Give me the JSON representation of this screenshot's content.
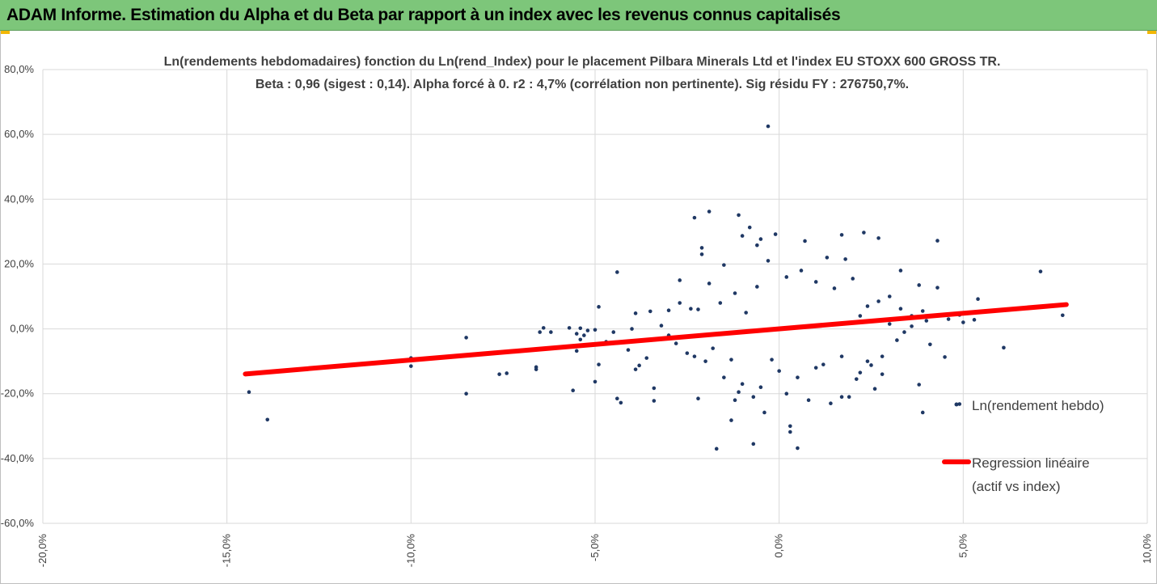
{
  "report": {
    "banner_title": "ADAM Informe. Estimation du Alpha et du Beta par rapport à un index avec les revenus connus capitalisés"
  },
  "colors": {
    "banner_bg": "#7dc67a",
    "point": "#1f3864",
    "regression": "#ff0000",
    "grid": "#d9d9d9",
    "text": "#404040"
  },
  "chart_data": {
    "type": "scatter",
    "title_line1": "Ln(rendements hebdomadaires) fonction du Ln(rend_Index) pour le placement Pilbara Minerals Ltd et l'index EU STOXX 600 GROSS TR.",
    "title_line2": "Beta : 0,96 (sigest : 0,14). Alpha forcé à 0. r2 : 4,7% (corrélation non pertinente). Sig résidu FY : 276750,7%.",
    "xlabel": "",
    "ylabel": "",
    "xlim": [
      -0.2,
      0.1
    ],
    "ylim": [
      -0.6,
      0.8
    ],
    "x_ticks": [
      -0.2,
      -0.15,
      -0.1,
      -0.05,
      0.0,
      0.05,
      0.1
    ],
    "x_tick_labels": [
      "-20,0%",
      "-15,0%",
      "-10,0%",
      "-5,0%",
      "0,0%",
      "5,0%",
      "10,0%"
    ],
    "y_ticks": [
      -0.6,
      -0.4,
      -0.2,
      0.0,
      0.2,
      0.4,
      0.6,
      0.8
    ],
    "y_tick_labels": [
      "-60,0%",
      "-40,0%",
      "-20,0%",
      "0,0%",
      "20,0%",
      "40,0%",
      "60,0%",
      "80,0%"
    ],
    "grid": "vertical and horizontal",
    "legend_position": "right",
    "legend": {
      "scatter_label": "Ln(rendement hebdo)",
      "regression_label_line1": "Regression linéaire",
      "regression_label_line2": "(actif vs index)"
    },
    "regression": {
      "slope": 0.96,
      "intercept": 0,
      "x_range": [
        -0.145,
        0.078
      ]
    },
    "series": [
      {
        "type": "scatter",
        "points": [
          [
            -0.003,
            0.625
          ],
          [
            -0.019,
            0.362
          ],
          [
            -0.023,
            0.343
          ],
          [
            -0.011,
            0.351
          ],
          [
            -0.008,
            0.313
          ],
          [
            -0.01,
            0.287
          ],
          [
            -0.005,
            0.277
          ],
          [
            -0.006,
            0.258
          ],
          [
            -0.001,
            0.292
          ],
          [
            0.007,
            0.271
          ],
          [
            0.017,
            0.29
          ],
          [
            0.023,
            0.297
          ],
          [
            0.027,
            0.28
          ],
          [
            0.043,
            0.272
          ],
          [
            0.071,
            0.177
          ],
          [
            -0.021,
            0.25
          ],
          [
            -0.021,
            0.23
          ],
          [
            -0.015,
            0.197
          ],
          [
            -0.003,
            0.21
          ],
          [
            0.013,
            0.22
          ],
          [
            0.018,
            0.215
          ],
          [
            0.033,
            0.18
          ],
          [
            0.038,
            0.135
          ],
          [
            0.043,
            0.127
          ],
          [
            -0.044,
            0.175
          ],
          [
            -0.027,
            0.15
          ],
          [
            -0.019,
            0.14
          ],
          [
            -0.049,
            0.068
          ],
          [
            -0.035,
            0.054
          ],
          [
            -0.039,
            0.048
          ],
          [
            -0.03,
            0.057
          ],
          [
            -0.027,
            0.08
          ],
          [
            -0.024,
            0.062
          ],
          [
            0.054,
            0.092
          ],
          [
            0.056,
            0.055
          ],
          [
            0.053,
            0.028
          ],
          [
            0.05,
            0.02
          ],
          [
            0.049,
            0.043
          ],
          [
            0.047,
            0.045
          ],
          [
            0.039,
            0.055
          ],
          [
            0.036,
            0.04
          ],
          [
            0.04,
            0.025
          ],
          [
            0.077,
            0.042
          ],
          [
            -0.064,
            0.003
          ],
          [
            -0.065,
            -0.01
          ],
          [
            -0.062,
            -0.01
          ],
          [
            -0.057,
            0.003
          ],
          [
            -0.054,
            0.002
          ],
          [
            -0.052,
            -0.005
          ],
          [
            -0.05,
            -0.003
          ],
          [
            -0.055,
            -0.015
          ],
          [
            -0.053,
            -0.02
          ],
          [
            -0.054,
            -0.033
          ],
          [
            -0.055,
            -0.068
          ],
          [
            -0.049,
            -0.11
          ],
          [
            -0.05,
            -0.163
          ],
          [
            -0.056,
            -0.19
          ],
          [
            -0.066,
            -0.118
          ],
          [
            -0.066,
            -0.125
          ],
          [
            -0.074,
            -0.137
          ],
          [
            -0.076,
            -0.14
          ],
          [
            -0.085,
            -0.027
          ],
          [
            -0.085,
            -0.2
          ],
          [
            -0.1,
            -0.09
          ],
          [
            -0.1,
            -0.115
          ],
          [
            -0.144,
            -0.195
          ],
          [
            -0.139,
            -0.28
          ],
          [
            -0.044,
            -0.215
          ],
          [
            -0.043,
            -0.228
          ],
          [
            -0.034,
            -0.222
          ],
          [
            -0.034,
            -0.183
          ],
          [
            -0.038,
            -0.113
          ],
          [
            -0.039,
            -0.125
          ],
          [
            -0.041,
            -0.065
          ],
          [
            -0.036,
            -0.09
          ],
          [
            -0.022,
            -0.215
          ],
          [
            -0.011,
            -0.195
          ],
          [
            -0.012,
            -0.22
          ],
          [
            -0.007,
            -0.21
          ],
          [
            0.002,
            -0.2
          ],
          [
            0.017,
            -0.21
          ],
          [
            0.019,
            -0.21
          ],
          [
            0.026,
            -0.185
          ],
          [
            0.014,
            -0.23
          ],
          [
            0.008,
            -0.22
          ],
          [
            -0.017,
            -0.37
          ],
          [
            -0.007,
            -0.355
          ],
          [
            0.003,
            -0.3
          ],
          [
            0.003,
            -0.318
          ],
          [
            0.005,
            -0.368
          ],
          [
            -0.004,
            -0.258
          ],
          [
            -0.013,
            -0.282
          ],
          [
            0.038,
            -0.172
          ],
          [
            0.041,
            -0.048
          ],
          [
            0.045,
            -0.087
          ],
          [
            0.039,
            -0.258
          ],
          [
            0.049,
            -0.232
          ],
          [
            0.061,
            -0.058
          ],
          [
            0.028,
            -0.085
          ],
          [
            0.024,
            -0.1
          ],
          [
            0.032,
            -0.035
          ],
          [
            0.034,
            -0.01
          ],
          [
            0.025,
            -0.112
          ],
          [
            0.022,
            -0.135
          ],
          [
            0.021,
            -0.155
          ],
          [
            0.01,
            -0.12
          ],
          [
            0.005,
            -0.15
          ],
          [
            0.0,
            -0.13
          ],
          [
            -0.005,
            -0.18
          ],
          [
            -0.01,
            -0.17
          ],
          [
            -0.015,
            -0.15
          ],
          [
            -0.02,
            -0.1
          ],
          [
            -0.023,
            -0.085
          ],
          [
            -0.018,
            -0.06
          ],
          [
            -0.013,
            -0.095
          ],
          [
            0.03,
            0.1
          ],
          [
            0.027,
            0.085
          ],
          [
            0.024,
            0.07
          ],
          [
            0.02,
            0.155
          ],
          [
            0.015,
            0.125
          ],
          [
            0.01,
            0.145
          ],
          [
            0.006,
            0.18
          ],
          [
            0.002,
            0.16
          ],
          [
            -0.006,
            0.13
          ],
          [
            -0.012,
            0.11
          ],
          [
            -0.016,
            0.08
          ],
          [
            -0.022,
            0.06
          ],
          [
            -0.009,
            0.05
          ],
          [
            0.028,
            -0.14
          ],
          [
            0.022,
            0.04
          ],
          [
            0.03,
            0.015
          ],
          [
            0.036,
            0.008
          ],
          [
            -0.03,
            -0.02
          ],
          [
            -0.028,
            -0.045
          ],
          [
            -0.025,
            -0.075
          ],
          [
            -0.032,
            0.01
          ],
          [
            -0.035,
            -0.035
          ],
          [
            -0.04,
            0.0
          ],
          [
            -0.045,
            -0.01
          ],
          [
            -0.047,
            -0.04
          ],
          [
            0.046,
            0.03
          ],
          [
            0.033,
            0.062
          ],
          [
            0.017,
            -0.085
          ],
          [
            0.012,
            -0.11
          ],
          [
            -0.002,
            -0.095
          ]
        ]
      }
    ]
  }
}
